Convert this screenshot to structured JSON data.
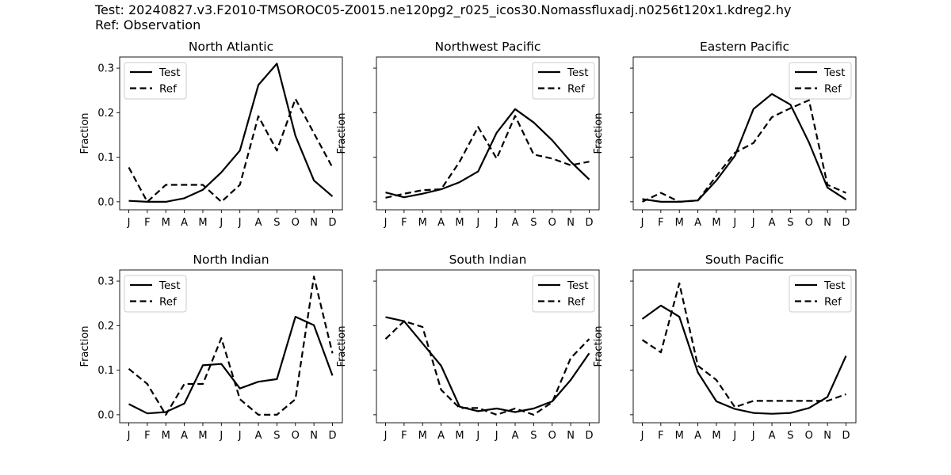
{
  "header": {
    "test_line": "Test: 20240827.v3.F2010-TMSOROC05-Z0015.ne120pg2_r025_icos30.Nomassfluxadj.n0256t120x1.kdreg2.hy",
    "ref_line": "Ref: Observation"
  },
  "chart_data": [
    {
      "type": "line",
      "title": "North Atlantic",
      "categories": [
        "J",
        "F",
        "M",
        "A",
        "M",
        "J",
        "J",
        "A",
        "S",
        "O",
        "N",
        "D"
      ],
      "xlabel": "",
      "ylabel": "Fraction",
      "ylim": [
        -0.018,
        0.325
      ],
      "yticks": [
        0.0,
        0.1,
        0.2,
        0.3
      ],
      "ytick_labels": [
        "0.0",
        "0.1",
        "0.2",
        "0.3"
      ],
      "show_ytick_labels": true,
      "legend_location": "top-left",
      "series": [
        {
          "name": "Test",
          "style": "solid",
          "values": [
            0.002,
            0.0,
            0.0,
            0.008,
            0.027,
            0.066,
            0.115,
            0.262,
            0.31,
            0.148,
            0.048,
            0.012
          ]
        },
        {
          "name": "Ref",
          "style": "dashed",
          "values": [
            0.077,
            0.0,
            0.038,
            0.038,
            0.038,
            0.0,
            0.038,
            0.192,
            0.115,
            0.231,
            0.154,
            0.077
          ]
        }
      ]
    },
    {
      "type": "line",
      "title": "Northwest Pacific",
      "categories": [
        "J",
        "F",
        "M",
        "A",
        "M",
        "J",
        "J",
        "A",
        "S",
        "O",
        "N",
        "D"
      ],
      "xlabel": "",
      "ylabel": "Fraction",
      "ylim": [
        -0.018,
        0.325
      ],
      "yticks": [
        0.0,
        0.1,
        0.2,
        0.3
      ],
      "ytick_labels": [
        "0.0",
        "0.1",
        "0.2",
        "0.3"
      ],
      "show_ytick_labels": false,
      "legend_location": "top-right",
      "series": [
        {
          "name": "Test",
          "style": "solid",
          "values": [
            0.021,
            0.01,
            0.018,
            0.028,
            0.044,
            0.068,
            0.155,
            0.208,
            0.178,
            0.138,
            0.09,
            0.05
          ]
        },
        {
          "name": "Ref",
          "style": "dashed",
          "values": [
            0.009,
            0.018,
            0.026,
            0.028,
            0.09,
            0.168,
            0.097,
            0.193,
            0.106,
            0.097,
            0.082,
            0.09
          ]
        }
      ]
    },
    {
      "type": "line",
      "title": "Eastern Pacific",
      "categories": [
        "J",
        "F",
        "M",
        "A",
        "M",
        "J",
        "J",
        "A",
        "S",
        "O",
        "N",
        "D"
      ],
      "xlabel": "",
      "ylabel": "Fraction",
      "ylim": [
        -0.018,
        0.325
      ],
      "yticks": [
        0.0,
        0.1,
        0.2,
        0.3
      ],
      "ytick_labels": [
        "0.0",
        "0.1",
        "0.2",
        "0.3"
      ],
      "show_ytick_labels": false,
      "legend_location": "top-right",
      "series": [
        {
          "name": "Test",
          "style": "solid",
          "values": [
            0.006,
            0.0,
            0.0,
            0.003,
            0.048,
            0.103,
            0.208,
            0.242,
            0.218,
            0.133,
            0.032,
            0.005
          ]
        },
        {
          "name": "Ref",
          "style": "dashed",
          "values": [
            0.0,
            0.02,
            0.0,
            0.003,
            0.058,
            0.11,
            0.132,
            0.19,
            0.21,
            0.228,
            0.038,
            0.02
          ]
        }
      ]
    },
    {
      "type": "line",
      "title": "North Indian",
      "categories": [
        "J",
        "F",
        "M",
        "A",
        "M",
        "J",
        "J",
        "A",
        "S",
        "O",
        "N",
        "D"
      ],
      "xlabel": "",
      "ylabel": "Fraction",
      "ylim": [
        -0.018,
        0.325
      ],
      "yticks": [
        0.0,
        0.1,
        0.2,
        0.3
      ],
      "ytick_labels": [
        "0.0",
        "0.1",
        "0.2",
        "0.3"
      ],
      "show_ytick_labels": true,
      "legend_location": "top-left",
      "series": [
        {
          "name": "Test",
          "style": "solid",
          "values": [
            0.024,
            0.003,
            0.006,
            0.025,
            0.111,
            0.114,
            0.059,
            0.074,
            0.08,
            0.22,
            0.201,
            0.088
          ]
        },
        {
          "name": "Ref",
          "style": "dashed",
          "values": [
            0.103,
            0.069,
            0.0,
            0.069,
            0.069,
            0.172,
            0.035,
            0.0,
            0.0,
            0.035,
            0.31,
            0.138
          ]
        }
      ]
    },
    {
      "type": "line",
      "title": "South Indian",
      "categories": [
        "J",
        "F",
        "M",
        "A",
        "M",
        "J",
        "J",
        "A",
        "S",
        "O",
        "N",
        "D"
      ],
      "xlabel": "",
      "ylabel": "Fraction",
      "ylim": [
        -0.018,
        0.325
      ],
      "yticks": [
        0.0,
        0.1,
        0.2,
        0.3
      ],
      "ytick_labels": [
        "0.0",
        "0.1",
        "0.2",
        "0.3"
      ],
      "show_ytick_labels": false,
      "legend_location": "top-right",
      "series": [
        {
          "name": "Test",
          "style": "solid",
          "values": [
            0.219,
            0.21,
            0.16,
            0.11,
            0.018,
            0.008,
            0.014,
            0.006,
            0.014,
            0.03,
            0.078,
            0.138
          ]
        },
        {
          "name": "Ref",
          "style": "dashed",
          "values": [
            0.17,
            0.21,
            0.197,
            0.056,
            0.015,
            0.015,
            0.0,
            0.014,
            0.0,
            0.028,
            0.127,
            0.17
          ]
        }
      ]
    },
    {
      "type": "line",
      "title": "South Pacific",
      "categories": [
        "J",
        "F",
        "M",
        "A",
        "M",
        "J",
        "J",
        "A",
        "S",
        "O",
        "N",
        "D"
      ],
      "xlabel": "",
      "ylabel": "Fraction",
      "ylim": [
        -0.018,
        0.325
      ],
      "yticks": [
        0.0,
        0.1,
        0.2,
        0.3
      ],
      "ytick_labels": [
        "0.0",
        "0.1",
        "0.2",
        "0.3"
      ],
      "show_ytick_labels": false,
      "legend_location": "top-right",
      "series": [
        {
          "name": "Test",
          "style": "solid",
          "values": [
            0.215,
            0.245,
            0.22,
            0.095,
            0.03,
            0.013,
            0.004,
            0.002,
            0.004,
            0.015,
            0.04,
            0.132
          ]
        },
        {
          "name": "Ref",
          "style": "dashed",
          "values": [
            0.168,
            0.14,
            0.295,
            0.11,
            0.078,
            0.017,
            0.031,
            0.031,
            0.031,
            0.031,
            0.031,
            0.046
          ]
        }
      ]
    }
  ],
  "colors": {
    "line": "#000000",
    "axes": "#000000",
    "background": "#ffffff"
  }
}
